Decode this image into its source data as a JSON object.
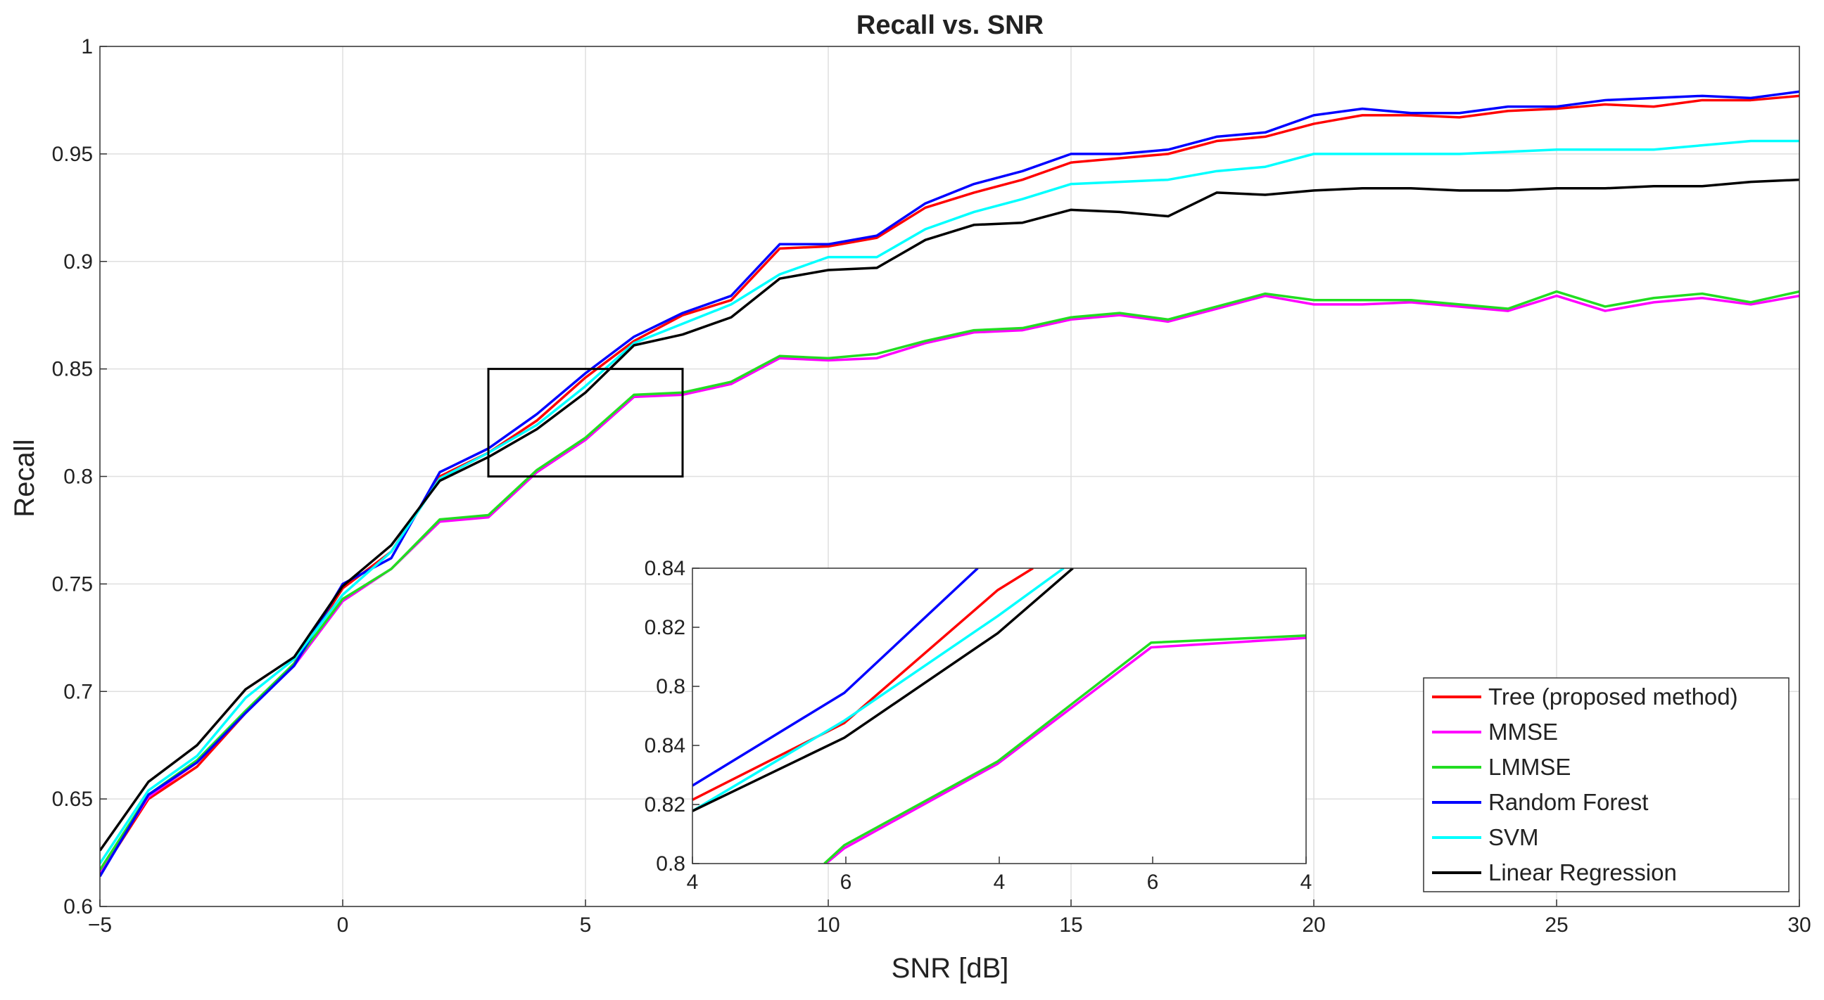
{
  "chart_data": [
    {
      "type": "line",
      "title": "Recall vs. SNR",
      "xlabel": "SNR [dB]",
      "ylabel": "Recall",
      "x": [
        -5,
        -4,
        -3,
        -2,
        -1,
        0,
        1,
        2,
        3,
        4,
        5,
        6,
        7,
        8,
        9,
        10,
        11,
        12,
        13,
        14,
        15,
        16,
        17,
        18,
        19,
        20,
        21,
        22,
        23,
        24,
        25,
        26,
        27,
        28,
        29,
        30
      ],
      "xlim": [
        -5,
        30
      ],
      "ylim": [
        0.6,
        1
      ],
      "xticks": [
        {
          "value": -5,
          "label": "−5"
        },
        0,
        5,
        10,
        15,
        20,
        25,
        30
      ],
      "yticks": [
        0.6,
        0.65,
        0.7,
        0.75,
        0.8,
        0.85,
        0.9,
        0.95,
        1
      ],
      "grid": true,
      "legend": "lower right",
      "zoom_box": {
        "xlim": [
          3,
          7
        ],
        "ylim": [
          0.8,
          0.85
        ]
      },
      "series": [
        {
          "name": "Tree (proposed method)",
          "color": "#ff0000",
          "values": [
            0.615,
            0.65,
            0.665,
            0.69,
            0.713,
            0.748,
            0.765,
            0.8,
            0.811,
            0.826,
            0.846,
            0.863,
            0.875,
            0.882,
            0.906,
            0.907,
            0.911,
            0.925,
            0.932,
            0.938,
            0.946,
            0.948,
            0.95,
            0.956,
            0.958,
            0.964,
            0.968,
            0.968,
            0.967,
            0.97,
            0.971,
            0.973,
            0.972,
            0.975,
            0.975,
            0.977
          ]
        },
        {
          "name": "MMSE",
          "color": "#ff00ff",
          "values": [
            0.616,
            0.651,
            0.667,
            0.69,
            0.712,
            0.742,
            0.757,
            0.779,
            0.781,
            0.802,
            0.817,
            0.837,
            0.838,
            0.843,
            0.855,
            0.854,
            0.855,
            0.862,
            0.867,
            0.868,
            0.873,
            0.875,
            0.872,
            0.878,
            0.884,
            0.88,
            0.88,
            0.881,
            0.879,
            0.877,
            0.884,
            0.877,
            0.881,
            0.883,
            0.88,
            0.884
          ]
        },
        {
          "name": "LMMSE",
          "color": "#22dd22",
          "values": [
            0.617,
            0.652,
            0.668,
            0.691,
            0.713,
            0.743,
            0.757,
            0.78,
            0.782,
            0.803,
            0.818,
            0.838,
            0.839,
            0.844,
            0.856,
            0.855,
            0.857,
            0.863,
            0.868,
            0.869,
            0.874,
            0.876,
            0.873,
            0.879,
            0.885,
            0.882,
            0.882,
            0.882,
            0.88,
            0.878,
            0.886,
            0.879,
            0.883,
            0.885,
            0.881,
            0.886
          ]
        },
        {
          "name": "Random Forest",
          "color": "#0000ff",
          "values": [
            0.614,
            0.652,
            0.667,
            0.69,
            0.712,
            0.75,
            0.762,
            0.802,
            0.813,
            0.829,
            0.848,
            0.865,
            0.876,
            0.884,
            0.908,
            0.908,
            0.912,
            0.927,
            0.936,
            0.942,
            0.95,
            0.95,
            0.952,
            0.958,
            0.96,
            0.968,
            0.971,
            0.969,
            0.969,
            0.972,
            0.972,
            0.975,
            0.976,
            0.977,
            0.976,
            0.979
          ]
        },
        {
          "name": "SVM",
          "color": "#00ffff",
          "values": [
            0.62,
            0.654,
            0.67,
            0.697,
            0.715,
            0.745,
            0.765,
            0.799,
            0.811,
            0.824,
            0.842,
            0.862,
            0.871,
            0.88,
            0.894,
            0.902,
            0.902,
            0.915,
            0.923,
            0.929,
            0.936,
            0.937,
            0.938,
            0.942,
            0.944,
            0.95,
            0.95,
            0.95,
            0.95,
            0.951,
            0.952,
            0.952,
            0.952,
            0.954,
            0.956,
            0.956
          ]
        },
        {
          "name": "Linear Regression",
          "color": "#000000",
          "values": [
            0.626,
            0.658,
            0.675,
            0.701,
            0.716,
            0.749,
            0.768,
            0.798,
            0.809,
            0.822,
            0.839,
            0.861,
            0.866,
            0.874,
            0.892,
            0.896,
            0.897,
            0.91,
            0.917,
            0.918,
            0.924,
            0.923,
            0.921,
            0.932,
            0.931,
            0.933,
            0.934,
            0.934,
            0.933,
            0.933,
            0.934,
            0.934,
            0.935,
            0.935,
            0.937,
            0.938
          ]
        }
      ]
    },
    {
      "type": "line",
      "xlim": [
        0,
        4
      ],
      "ylim": [
        0,
        5
      ],
      "xticks": [
        {
          "value": 0,
          "label": "4"
        },
        {
          "value": 1,
          "label": "6"
        },
        {
          "value": 2,
          "label": "4"
        },
        {
          "value": 3,
          "label": "6"
        },
        {
          "value": 4,
          "label": "4"
        }
      ],
      "yticks": [
        {
          "value": 0,
          "label": "0.8"
        },
        {
          "value": 1,
          "label": "0.82"
        },
        {
          "value": 2,
          "label": "0.84"
        },
        {
          "value": 3,
          "label": "0.8"
        },
        {
          "value": 4,
          "label": "0.82"
        },
        {
          "value": 5,
          "label": "0.84"
        }
      ],
      "series": [
        {
          "color": "#ff0000",
          "x": [
            0,
            0.99,
            1.99,
            2.22
          ],
          "values": [
            1.08,
            2.38,
            4.63,
            5
          ]
        },
        {
          "color": "#ff00ff",
          "x": [
            0.87,
            0.99,
            1.99,
            2.99,
            4
          ],
          "values": [
            0,
            0.26,
            1.69,
            3.66,
            3.82
          ]
        },
        {
          "color": "#22dd22",
          "x": [
            0.86,
            0.99,
            1.99,
            2.99,
            4
          ],
          "values": [
            0,
            0.31,
            1.73,
            3.74,
            3.86
          ]
        },
        {
          "color": "#0000ff",
          "x": [
            0,
            0.99,
            1.86
          ],
          "values": [
            1.32,
            2.89,
            5
          ]
        },
        {
          "color": "#00ffff",
          "x": [
            0,
            0.99,
            1.99,
            2.42
          ],
          "values": [
            0.89,
            2.42,
            4.19,
            5
          ]
        },
        {
          "color": "#000000",
          "x": [
            0,
            0.99,
            1.99,
            2.48
          ],
          "values": [
            0.89,
            2.13,
            3.9,
            5
          ]
        }
      ]
    }
  ]
}
